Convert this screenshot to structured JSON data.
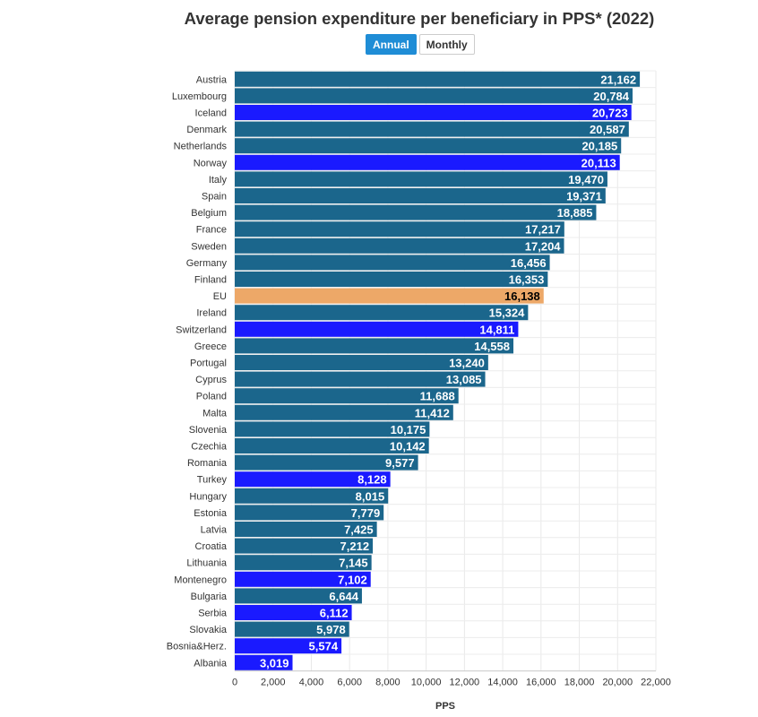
{
  "title": "Average pension expenditure per beneficiary in PPS* (2022)",
  "toggle": {
    "annual_label": "Annual",
    "monthly_label": "Monthly",
    "selected": "Annual"
  },
  "colors": {
    "eu_member": "#1b668c",
    "non_eu": "#1a1aff",
    "eu_average": "#eda868",
    "accent_button": "#1f8dd6"
  },
  "chart_data": {
    "type": "bar",
    "orientation": "horizontal",
    "title": "Average pension expenditure per beneficiary in PPS* (2022)",
    "xlabel": "PPS",
    "ylabel": "",
    "xlim": [
      0,
      22000
    ],
    "xticks": [
      0,
      2000,
      4000,
      6000,
      8000,
      10000,
      12000,
      14000,
      16000,
      18000,
      20000,
      22000
    ],
    "xtick_labels": [
      "0",
      "2,000",
      "4,000",
      "6,000",
      "8,000",
      "10,000",
      "12,000",
      "14,000",
      "16,000",
      "18,000",
      "20,000",
      "22,000"
    ],
    "grid": true,
    "categories": [
      "Austria",
      "Luxembourg",
      "Iceland",
      "Denmark",
      "Netherlands",
      "Norway",
      "Italy",
      "Spain",
      "Belgium",
      "France",
      "Sweden",
      "Germany",
      "Finland",
      "EU",
      "Ireland",
      "Switzerland",
      "Greece",
      "Portugal",
      "Cyprus",
      "Poland",
      "Malta",
      "Slovenia",
      "Czechia",
      "Romania",
      "Turkey",
      "Hungary",
      "Estonia",
      "Latvia",
      "Croatia",
      "Lithuania",
      "Montenegro",
      "Bulgaria",
      "Serbia",
      "Slovakia",
      "Bosnia&Herz.",
      "Albania"
    ],
    "values": [
      21162,
      20784,
      20723,
      20587,
      20185,
      20113,
      19470,
      19371,
      18885,
      17217,
      17204,
      16456,
      16353,
      16138,
      15324,
      14811,
      14558,
      13240,
      13085,
      11688,
      11412,
      10175,
      10142,
      9577,
      8128,
      8015,
      7779,
      7425,
      7212,
      7145,
      7102,
      6644,
      6112,
      5978,
      5574,
      3019
    ],
    "value_labels": [
      "21,162",
      "20,784",
      "20,723",
      "20,587",
      "20,185",
      "20,113",
      "19,470",
      "19,371",
      "18,885",
      "17,217",
      "17,204",
      "16,456",
      "16,353",
      "16,138",
      "15,324",
      "14,811",
      "14,558",
      "13,240",
      "13,085",
      "11,688",
      "11,412",
      "10,175",
      "10,142",
      "9,577",
      "8,128",
      "8,015",
      "7,779",
      "7,425",
      "7,212",
      "7,145",
      "7,102",
      "6,644",
      "6,112",
      "5,978",
      "5,574",
      "3,019"
    ],
    "bar_groups": [
      "eu_member",
      "eu_member",
      "non_eu",
      "eu_member",
      "eu_member",
      "non_eu",
      "eu_member",
      "eu_member",
      "eu_member",
      "eu_member",
      "eu_member",
      "eu_member",
      "eu_member",
      "eu_average",
      "eu_member",
      "non_eu",
      "eu_member",
      "eu_member",
      "eu_member",
      "eu_member",
      "eu_member",
      "eu_member",
      "eu_member",
      "eu_member",
      "non_eu",
      "eu_member",
      "eu_member",
      "eu_member",
      "eu_member",
      "eu_member",
      "non_eu",
      "eu_member",
      "non_eu",
      "eu_member",
      "non_eu",
      "non_eu"
    ]
  }
}
